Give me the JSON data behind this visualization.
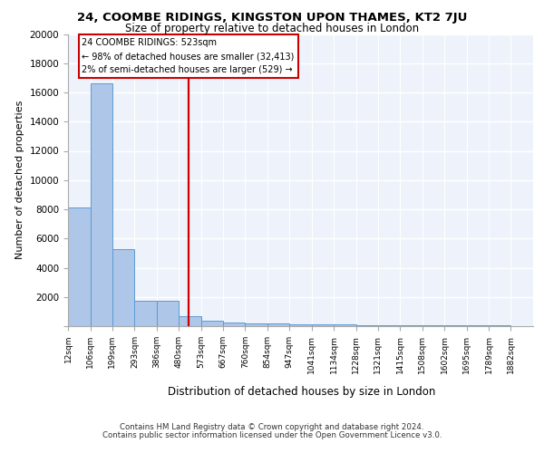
{
  "title_line1": "24, COOMBE RIDINGS, KINGSTON UPON THAMES, KT2 7JU",
  "title_line2": "Size of property relative to detached houses in London",
  "xlabel": "Distribution of detached houses by size in London",
  "ylabel": "Number of detached properties",
  "annotation_line1": "24 COOMBE RIDINGS: 523sqm",
  "annotation_line2": "← 98% of detached houses are smaller (32,413)",
  "annotation_line3": "2% of semi-detached houses are larger (529) →",
  "vline_x": 523,
  "categories": [
    "12sqm",
    "106sqm",
    "199sqm",
    "293sqm",
    "386sqm",
    "480sqm",
    "573sqm",
    "667sqm",
    "760sqm",
    "854sqm",
    "947sqm",
    "1041sqm",
    "1134sqm",
    "1228sqm",
    "1321sqm",
    "1415sqm",
    "1508sqm",
    "1602sqm",
    "1695sqm",
    "1789sqm",
    "1882sqm"
  ],
  "bin_edges": [
    12,
    106,
    199,
    293,
    386,
    480,
    573,
    667,
    760,
    854,
    947,
    1041,
    1134,
    1228,
    1321,
    1415,
    1508,
    1602,
    1695,
    1789,
    1882
  ],
  "bin_heights": [
    8100,
    16600,
    5300,
    1750,
    1750,
    700,
    350,
    260,
    190,
    160,
    130,
    120,
    100,
    80,
    70,
    60,
    55,
    50,
    45,
    40
  ],
  "bar_color": "#aec6e8",
  "bar_edge_color": "#5b9bd5",
  "vline_color": "#cc0000",
  "background_color": "#eef3fb",
  "grid_color": "#ffffff",
  "ylim": [
    0,
    20000
  ],
  "yticks": [
    0,
    2000,
    4000,
    6000,
    8000,
    10000,
    12000,
    14000,
    16000,
    18000,
    20000
  ],
  "footer_line1": "Contains HM Land Registry data © Crown copyright and database right 2024.",
  "footer_line2": "Contains public sector information licensed under the Open Government Licence v3.0."
}
